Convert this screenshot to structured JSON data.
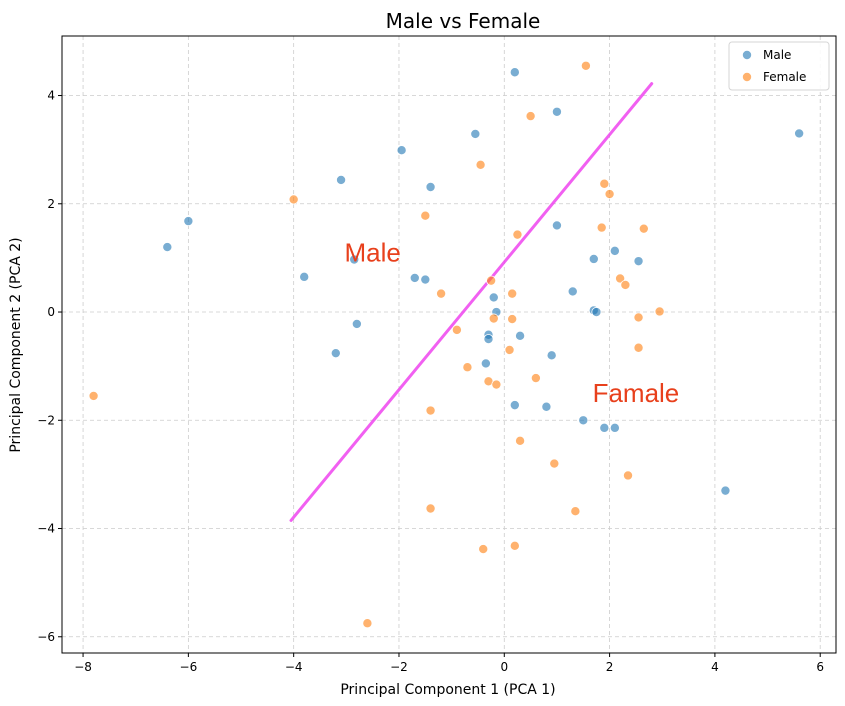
{
  "chart_data": {
    "type": "scatter",
    "title": "Male vs Female",
    "xlabel": "Principal Component 1 (PCA 1)",
    "ylabel": "Principal Component 2 (PCA 2)",
    "xlim": [
      -8.4,
      6.3
    ],
    "ylim": [
      -6.3,
      5.1
    ],
    "xticks": [
      -8,
      -6,
      -4,
      -2,
      0,
      2,
      4,
      6
    ],
    "yticks": [
      -6,
      -4,
      -2,
      0,
      2,
      4
    ],
    "grid": true,
    "legend_position": "top-right",
    "series": [
      {
        "name": "Male",
        "color": "#1f77b4",
        "points": [
          [
            -6.4,
            1.2
          ],
          [
            -6.0,
            1.68
          ],
          [
            -3.8,
            0.65
          ],
          [
            -3.1,
            2.44
          ],
          [
            -2.85,
            0.97
          ],
          [
            -2.8,
            -0.22
          ],
          [
            -3.2,
            -0.76
          ],
          [
            -1.95,
            2.99
          ],
          [
            -1.7,
            0.63
          ],
          [
            -1.5,
            0.6
          ],
          [
            -1.4,
            2.31
          ],
          [
            -0.55,
            3.29
          ],
          [
            -0.3,
            -0.42
          ],
          [
            -0.3,
            -0.5
          ],
          [
            -0.35,
            -0.95
          ],
          [
            -0.2,
            0.27
          ],
          [
            -0.15,
            0.0
          ],
          [
            0.3,
            -0.44
          ],
          [
            0.2,
            4.43
          ],
          [
            0.2,
            -1.72
          ],
          [
            0.8,
            -1.75
          ],
          [
            0.9,
            -0.8
          ],
          [
            1.0,
            3.7
          ],
          [
            1.0,
            1.6
          ],
          [
            1.3,
            0.38
          ],
          [
            1.5,
            -2.0
          ],
          [
            1.7,
            0.98
          ],
          [
            1.7,
            0.03
          ],
          [
            1.75,
            0.0
          ],
          [
            1.9,
            -2.14
          ],
          [
            2.1,
            -2.14
          ],
          [
            2.1,
            1.13
          ],
          [
            2.55,
            0.94
          ],
          [
            4.2,
            -3.3
          ],
          [
            5.6,
            3.3
          ]
        ]
      },
      {
        "name": "Female",
        "color": "#ff7f0e",
        "points": [
          [
            -7.8,
            -1.55
          ],
          [
            -4.0,
            2.08
          ],
          [
            -2.6,
            -5.75
          ],
          [
            -1.5,
            1.78
          ],
          [
            -1.4,
            -1.82
          ],
          [
            -1.4,
            -3.63
          ],
          [
            -1.2,
            0.34
          ],
          [
            -0.9,
            -0.33
          ],
          [
            -0.7,
            -1.02
          ],
          [
            -0.45,
            2.72
          ],
          [
            -0.4,
            -4.38
          ],
          [
            -0.3,
            -1.28
          ],
          [
            -0.25,
            0.58
          ],
          [
            -0.2,
            -0.12
          ],
          [
            -0.15,
            -1.34
          ],
          [
            0.1,
            -0.7
          ],
          [
            0.15,
            0.34
          ],
          [
            0.15,
            -0.13
          ],
          [
            0.2,
            -4.32
          ],
          [
            0.25,
            1.43
          ],
          [
            0.3,
            -2.38
          ],
          [
            0.5,
            3.62
          ],
          [
            0.6,
            -1.22
          ],
          [
            0.95,
            -2.8
          ],
          [
            1.35,
            -3.68
          ],
          [
            1.55,
            4.55
          ],
          [
            1.85,
            1.56
          ],
          [
            1.9,
            2.37
          ],
          [
            2.0,
            2.18
          ],
          [
            2.2,
            0.62
          ],
          [
            2.3,
            0.5
          ],
          [
            2.35,
            -3.02
          ],
          [
            2.55,
            -0.1
          ],
          [
            2.55,
            -0.66
          ],
          [
            2.65,
            1.54
          ],
          [
            2.95,
            0.01
          ]
        ]
      }
    ],
    "line": {
      "color": "#ee44ee",
      "from": [
        -4.05,
        -3.85
      ],
      "to": [
        2.8,
        4.22
      ]
    },
    "annotations": [
      {
        "text": "Male",
        "x": -2.5,
        "y": 1.1,
        "color": "#e8401c"
      },
      {
        "text": "Famale",
        "x": 2.5,
        "y": -1.5,
        "color": "#e8401c"
      }
    ]
  }
}
